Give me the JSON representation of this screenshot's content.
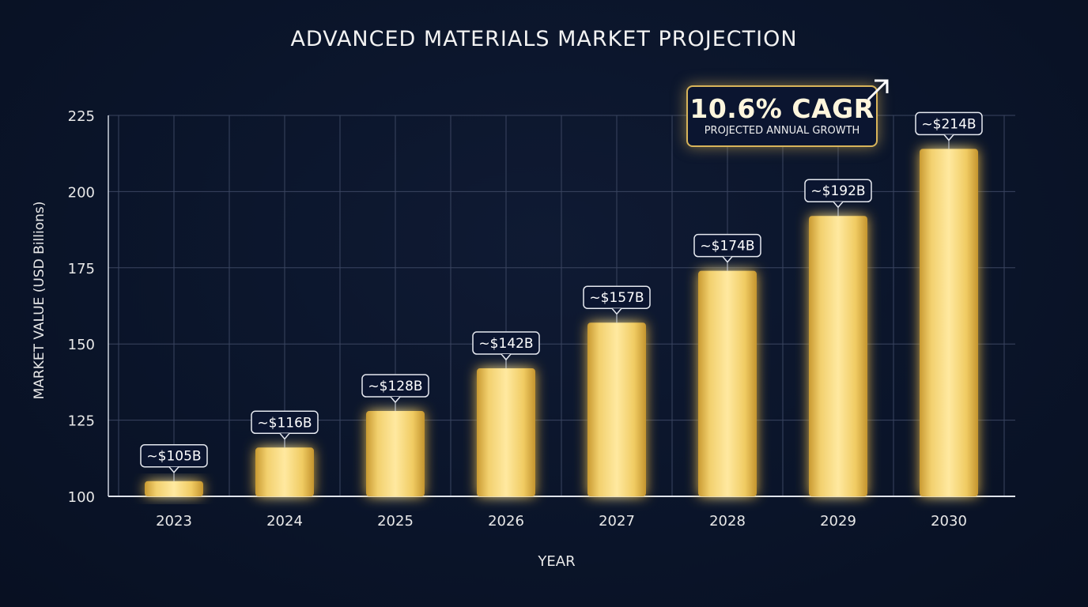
{
  "chart_data": {
    "type": "bar",
    "title": "ADVANCED MATERIALS MARKET PROJECTION",
    "xlabel": "YEAR",
    "ylabel": "MARKET VALUE (USD Billions)",
    "categories": [
      "2023",
      "2024",
      "2025",
      "2026",
      "2027",
      "2028",
      "2029",
      "2030"
    ],
    "values": [
      105,
      116,
      128,
      142,
      157,
      174,
      192,
      214
    ],
    "data_labels": [
      "~$105B",
      "~$116B",
      "~$128B",
      "~$142B",
      "~$157B",
      "~$174B",
      "~$192B",
      "~$214B"
    ],
    "ylim": [
      100,
      225
    ],
    "yticks": [
      100,
      125,
      150,
      175,
      200,
      225
    ],
    "grid": true,
    "bar_color": "#e8c45a",
    "annotation": {
      "value": "10.6% CAGR",
      "subtitle": "PROJECTED ANNUAL GROWTH"
    }
  }
}
